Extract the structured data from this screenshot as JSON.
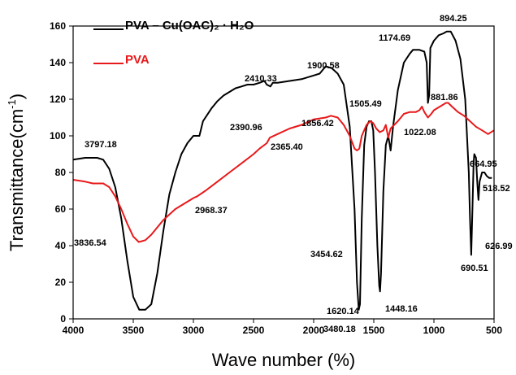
{
  "chart_data": {
    "type": "line",
    "title": "",
    "xlabel": "Wave number (%)",
    "ylabel_main": "Transmittance(cm",
    "ylabel_sup": "-1",
    "ylabel_close": ")",
    "xlim": [
      4000,
      500
    ],
    "ylim": [
      0,
      160
    ],
    "x_ticks": [
      4000,
      3500,
      3000,
      2500,
      2000,
      1500,
      1000,
      500
    ],
    "y_ticks": [
      0,
      20,
      40,
      60,
      80,
      100,
      120,
      140,
      160
    ],
    "legend_position": "top-left",
    "series": [
      {
        "name": "PVA – Cu(OAC)₂ · H₂O",
        "color": "#000000",
        "points": [
          [
            4000,
            87
          ],
          [
            3900,
            88
          ],
          [
            3800,
            88
          ],
          [
            3750,
            87
          ],
          [
            3700,
            82
          ],
          [
            3650,
            72
          ],
          [
            3600,
            55
          ],
          [
            3550,
            32
          ],
          [
            3500,
            12
          ],
          [
            3450,
            5
          ],
          [
            3400,
            5
          ],
          [
            3350,
            8
          ],
          [
            3300,
            25
          ],
          [
            3250,
            48
          ],
          [
            3200,
            68
          ],
          [
            3150,
            80
          ],
          [
            3100,
            90
          ],
          [
            3050,
            96
          ],
          [
            3000,
            100
          ],
          [
            2950,
            100
          ],
          [
            2920,
            108
          ],
          [
            2850,
            115
          ],
          [
            2800,
            119
          ],
          [
            2750,
            122
          ],
          [
            2700,
            124
          ],
          [
            2650,
            126
          ],
          [
            2600,
            127
          ],
          [
            2550,
            128
          ],
          [
            2500,
            128
          ],
          [
            2450,
            129
          ],
          [
            2410,
            130
          ],
          [
            2390,
            128
          ],
          [
            2360,
            127
          ],
          [
            2340,
            129
          ],
          [
            2300,
            129
          ],
          [
            2200,
            130
          ],
          [
            2100,
            131
          ],
          [
            2000,
            133
          ],
          [
            1950,
            134
          ],
          [
            1900,
            138
          ],
          [
            1850,
            137
          ],
          [
            1800,
            134
          ],
          [
            1750,
            128
          ],
          [
            1700,
            105
          ],
          [
            1660,
            60
          ],
          [
            1640,
            20
          ],
          [
            1625,
            5
          ],
          [
            1615,
            8
          ],
          [
            1600,
            55
          ],
          [
            1580,
            95
          ],
          [
            1560,
            105
          ],
          [
            1540,
            108
          ],
          [
            1520,
            108
          ],
          [
            1505,
            103
          ],
          [
            1490,
            80
          ],
          [
            1470,
            40
          ],
          [
            1455,
            18
          ],
          [
            1448,
            15
          ],
          [
            1440,
            25
          ],
          [
            1420,
            70
          ],
          [
            1400,
            95
          ],
          [
            1380,
            100
          ],
          [
            1360,
            92
          ],
          [
            1340,
            105
          ],
          [
            1300,
            125
          ],
          [
            1250,
            140
          ],
          [
            1200,
            145
          ],
          [
            1174,
            147
          ],
          [
            1120,
            147
          ],
          [
            1080,
            146
          ],
          [
            1060,
            140
          ],
          [
            1050,
            118
          ],
          [
            1040,
            122
          ],
          [
            1030,
            148
          ],
          [
            1000,
            152
          ],
          [
            960,
            155
          ],
          [
            920,
            156
          ],
          [
            894,
            157
          ],
          [
            860,
            157
          ],
          [
            820,
            152
          ],
          [
            780,
            142
          ],
          [
            740,
            120
          ],
          [
            710,
            80
          ],
          [
            700,
            55
          ],
          [
            690,
            35
          ],
          [
            680,
            60
          ],
          [
            670,
            85
          ],
          [
            664,
            90
          ],
          [
            650,
            88
          ],
          [
            640,
            75
          ],
          [
            630,
            65
          ],
          [
            620,
            75
          ],
          [
            600,
            80
          ],
          [
            580,
            80
          ],
          [
            560,
            78
          ],
          [
            540,
            77
          ],
          [
            518,
            77
          ]
        ]
      },
      {
        "name": "PVA",
        "color": "#e8191a",
        "points": [
          [
            4000,
            76
          ],
          [
            3900,
            75
          ],
          [
            3836,
            74
          ],
          [
            3750,
            74
          ],
          [
            3700,
            72
          ],
          [
            3650,
            67
          ],
          [
            3600,
            60
          ],
          [
            3550,
            52
          ],
          [
            3500,
            45
          ],
          [
            3454,
            42
          ],
          [
            3400,
            43
          ],
          [
            3350,
            46
          ],
          [
            3300,
            50
          ],
          [
            3250,
            54
          ],
          [
            3200,
            57
          ],
          [
            3150,
            60
          ],
          [
            3100,
            62
          ],
          [
            3050,
            64
          ],
          [
            3000,
            66
          ],
          [
            2968,
            67
          ],
          [
            2900,
            70
          ],
          [
            2800,
            75
          ],
          [
            2700,
            80
          ],
          [
            2600,
            85
          ],
          [
            2500,
            90
          ],
          [
            2450,
            93
          ],
          [
            2390,
            96
          ],
          [
            2365,
            99
          ],
          [
            2300,
            101
          ],
          [
            2200,
            104
          ],
          [
            2100,
            106
          ],
          [
            2000,
            109
          ],
          [
            1900,
            110
          ],
          [
            1856,
            111
          ],
          [
            1800,
            110
          ],
          [
            1750,
            106
          ],
          [
            1700,
            100
          ],
          [
            1660,
            93
          ],
          [
            1640,
            92
          ],
          [
            1620,
            93
          ],
          [
            1600,
            100
          ],
          [
            1560,
            106
          ],
          [
            1530,
            108
          ],
          [
            1505,
            107
          ],
          [
            1480,
            104
          ],
          [
            1450,
            102
          ],
          [
            1420,
            103
          ],
          [
            1400,
            106
          ],
          [
            1380,
            99
          ],
          [
            1360,
            104
          ],
          [
            1300,
            108
          ],
          [
            1250,
            112
          ],
          [
            1200,
            113
          ],
          [
            1150,
            113
          ],
          [
            1120,
            114
          ],
          [
            1100,
            116
          ],
          [
            1080,
            113
          ],
          [
            1050,
            110
          ],
          [
            1022,
            112
          ],
          [
            1000,
            114
          ],
          [
            950,
            116
          ],
          [
            900,
            118
          ],
          [
            881,
            118
          ],
          [
            850,
            116
          ],
          [
            800,
            113
          ],
          [
            750,
            111
          ],
          [
            700,
            108
          ],
          [
            650,
            105
          ],
          [
            600,
            103
          ],
          [
            550,
            101
          ],
          [
            500,
            103
          ]
        ]
      }
    ],
    "annotations": [
      {
        "text": "3797.18"
      },
      {
        "text": "3836.54"
      },
      {
        "text": "3454.62"
      },
      {
        "text": "3480.18"
      },
      {
        "text": "2968.37"
      },
      {
        "text": "2410.33"
      },
      {
        "text": "2390.96"
      },
      {
        "text": "2365.40"
      },
      {
        "text": "1900.58"
      },
      {
        "text": "1856.42"
      },
      {
        "text": "1505.49"
      },
      {
        "text": "1620.14"
      },
      {
        "text": "1448.16"
      },
      {
        "text": "1174.69"
      },
      {
        "text": "894.25"
      },
      {
        "text": "881.86"
      },
      {
        "text": "1022.08"
      },
      {
        "text": "664.95"
      },
      {
        "text": "518.52"
      },
      {
        "text": "626.99"
      },
      {
        "text": "690.51"
      }
    ]
  }
}
